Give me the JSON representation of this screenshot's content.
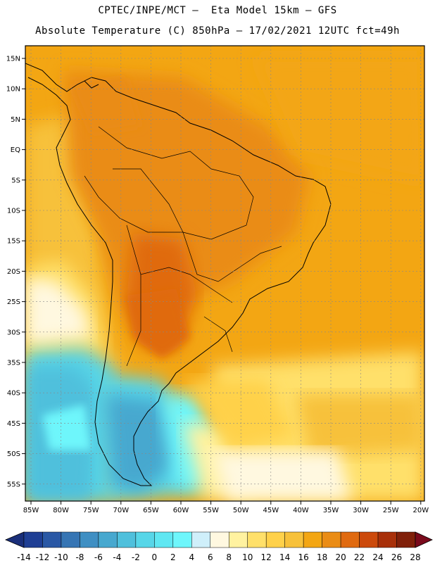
{
  "header": {
    "line1": "CPTEC/INPE/MCT –  Eta Model 15km – GFS",
    "line2": "Absolute Temperature (C) 850hPa – 17/02/2021 12UTC fct=49h"
  },
  "axes": {
    "lat_labels": [
      "15N",
      "10N",
      "5N",
      "EQ",
      "5S",
      "10S",
      "15S",
      "20S",
      "25S",
      "30S",
      "35S",
      "40S",
      "45S",
      "50S",
      "55S"
    ],
    "lon_labels": [
      "85W",
      "80W",
      "75W",
      "70W",
      "65W",
      "60W",
      "55W",
      "50W",
      "45W",
      "40W",
      "35W",
      "30W",
      "25W",
      "20W"
    ]
  },
  "colorbar": {
    "labels": [
      "-14",
      "-12",
      "-10",
      "-8",
      "-6",
      "-4",
      "-2",
      "0",
      "2",
      "4",
      "6",
      "8",
      "10",
      "12",
      "14",
      "16",
      "18",
      "20",
      "22",
      "24",
      "26",
      "28"
    ],
    "colors": [
      "#1f3f94",
      "#2a58a5",
      "#3675b4",
      "#3f8fc3",
      "#47a8cf",
      "#4fc0dc",
      "#57d6e8",
      "#5fe7f2",
      "#6ef6fb",
      "#cfeffa",
      "#fff8e0",
      "#fff2a0",
      "#ffe06a",
      "#ffd14a",
      "#f7c13a",
      "#f3a613",
      "#ea8c15",
      "#e06a10",
      "#cc4a0c",
      "#a8300a",
      "#80200a"
    ],
    "under_color": "#1a2f7a",
    "over_color": "#7a0a1c"
  }
}
